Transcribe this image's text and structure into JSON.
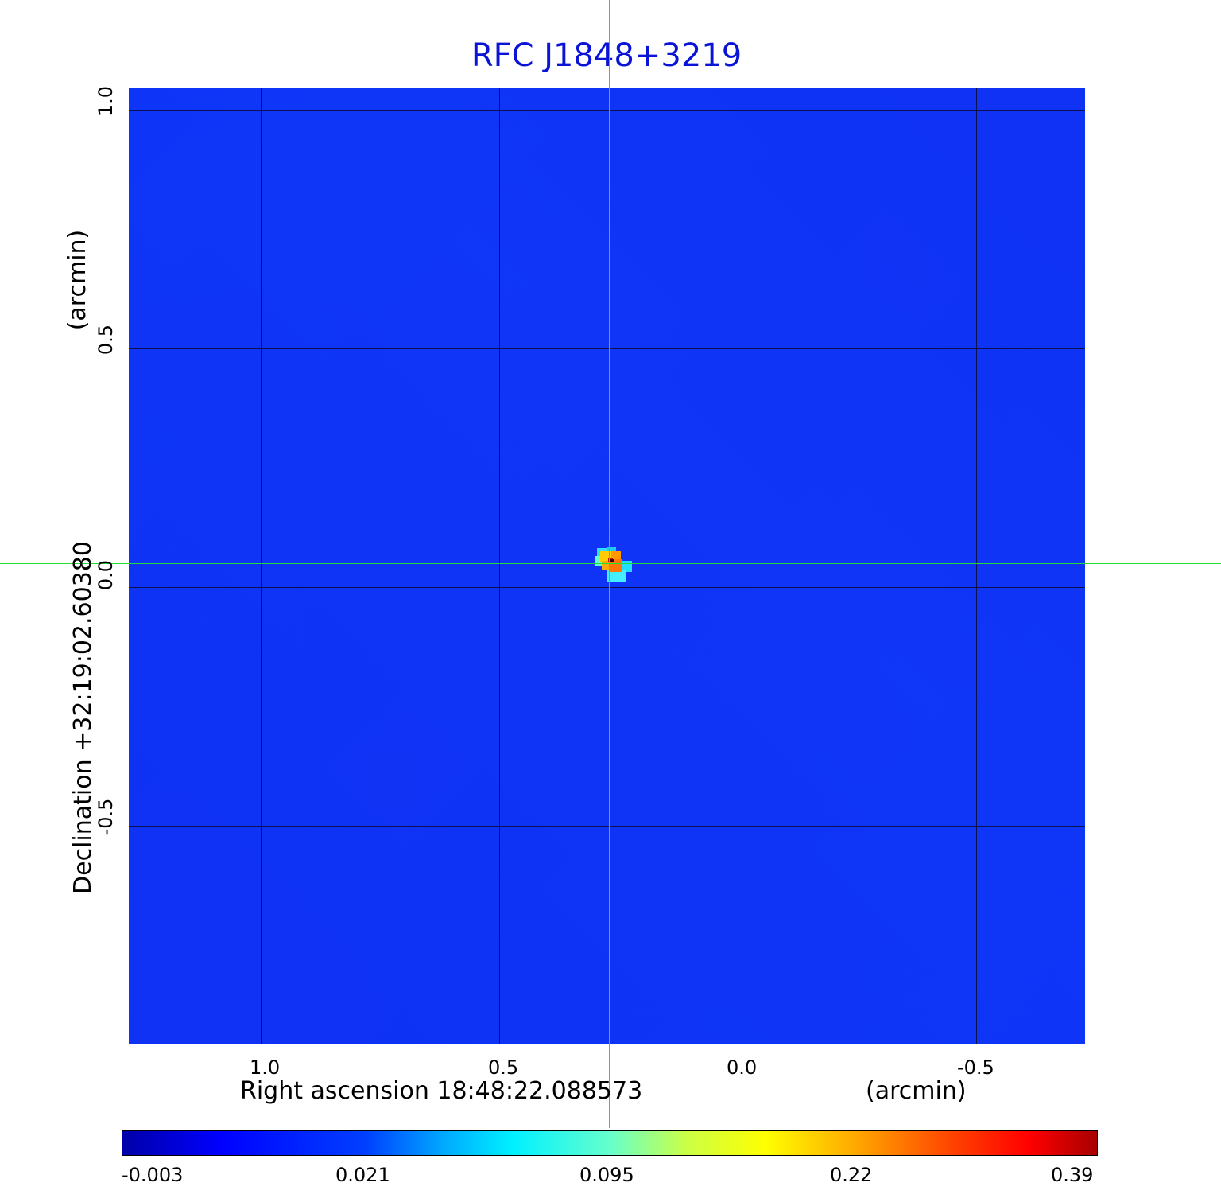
{
  "title": "RFC J1848+3219",
  "x_axis": {
    "label": "Right ascension  18:48:22.088573",
    "unit": "(arcmin)",
    "ticks": [
      "1.0",
      "0.5",
      "0.0",
      "-0.5"
    ]
  },
  "y_axis": {
    "label": "Declination  +32:19:02.60380",
    "unit": "(arcmin)",
    "ticks": [
      "1.0",
      "0.5",
      "0.0",
      "-0.5"
    ]
  },
  "colorbar": {
    "labels": [
      "-0.003",
      "0.021",
      "0.095",
      "0.22",
      "0.39"
    ],
    "colors": [
      "#0a0aa8",
      "#0033ff",
      "#00eeff",
      "#ffff00",
      "#ff0000",
      "#b30000"
    ]
  },
  "colors": {
    "title": "#0a14d6",
    "background_map": "#0c33f7",
    "crosshair": "#22dd33"
  }
}
